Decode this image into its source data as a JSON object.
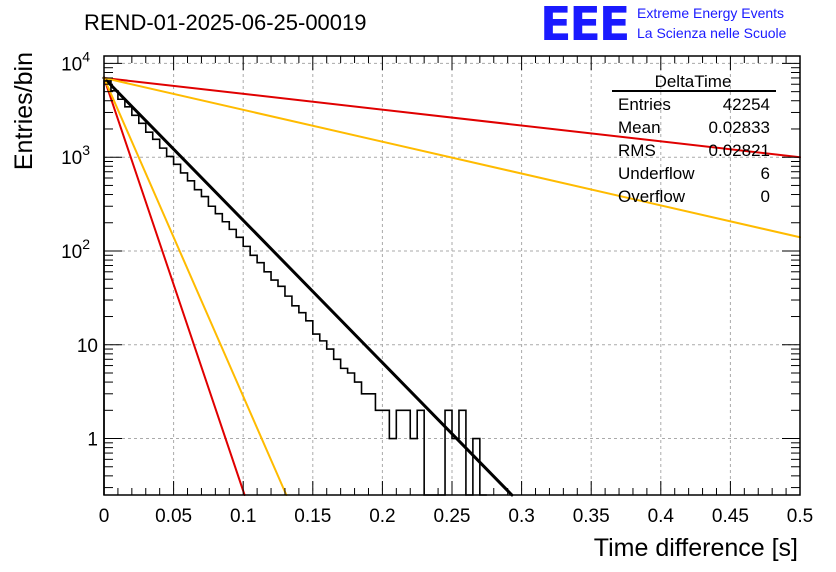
{
  "header": {
    "title": "REND-01-2025-06-25-00019",
    "logo_text": "EEE",
    "org_line1": "Extreme Energy Events",
    "org_line2": "La Scienza nelle Scuole"
  },
  "stats_box": {
    "title": "DeltaTime",
    "rows": [
      {
        "label": "Entries",
        "value": "42254"
      },
      {
        "label": "Mean",
        "value": "0.02833"
      },
      {
        "label": "RMS",
        "value": "0.02821"
      },
      {
        "label": "Underflow",
        "value": "6"
      },
      {
        "label": "Overflow",
        "value": "0"
      }
    ]
  },
  "colors": {
    "histogram": "#000000",
    "fit": "#000000",
    "red_curves": "#e00000",
    "orange_curves": "#ffbb00",
    "grid": "#aaaaaa",
    "logo": "#1a1aff"
  },
  "chart_data": {
    "type": "histogram",
    "title": "REND-01-2025-06-25-00019",
    "xlabel": "Time difference [s]",
    "ylabel": "Entries/bin",
    "xlim": [
      0,
      0.5
    ],
    "ylim": [
      0.25,
      12000
    ],
    "yscale": "log",
    "grid": true,
    "x_ticks": [
      "0",
      "0.05",
      "0.1",
      "0.15",
      "0.2",
      "0.25",
      "0.3",
      "0.35",
      "0.4",
      "0.45",
      "0.5"
    ],
    "y_ticks": [
      "1",
      "10",
      "10^2",
      "10^3",
      "10^4"
    ],
    "bin_width": 0.005,
    "histogram_bins": [
      {
        "x": 0.0,
        "y": 6500
      },
      {
        "x": 0.005,
        "y": 5100
      },
      {
        "x": 0.01,
        "y": 4150
      },
      {
        "x": 0.015,
        "y": 3450
      },
      {
        "x": 0.02,
        "y": 2800
      },
      {
        "x": 0.025,
        "y": 2300
      },
      {
        "x": 0.03,
        "y": 1850
      },
      {
        "x": 0.035,
        "y": 1550
      },
      {
        "x": 0.04,
        "y": 1250
      },
      {
        "x": 0.045,
        "y": 1020
      },
      {
        "x": 0.05,
        "y": 840
      },
      {
        "x": 0.055,
        "y": 680
      },
      {
        "x": 0.06,
        "y": 560
      },
      {
        "x": 0.065,
        "y": 450
      },
      {
        "x": 0.07,
        "y": 380
      },
      {
        "x": 0.075,
        "y": 300
      },
      {
        "x": 0.08,
        "y": 250
      },
      {
        "x": 0.085,
        "y": 205
      },
      {
        "x": 0.09,
        "y": 170
      },
      {
        "x": 0.095,
        "y": 140
      },
      {
        "x": 0.1,
        "y": 112
      },
      {
        "x": 0.105,
        "y": 90
      },
      {
        "x": 0.11,
        "y": 75
      },
      {
        "x": 0.115,
        "y": 60
      },
      {
        "x": 0.12,
        "y": 49
      },
      {
        "x": 0.125,
        "y": 42
      },
      {
        "x": 0.13,
        "y": 33
      },
      {
        "x": 0.135,
        "y": 26
      },
      {
        "x": 0.14,
        "y": 22
      },
      {
        "x": 0.145,
        "y": 18
      },
      {
        "x": 0.15,
        "y": 13
      },
      {
        "x": 0.155,
        "y": 11
      },
      {
        "x": 0.16,
        "y": 9
      },
      {
        "x": 0.165,
        "y": 7
      },
      {
        "x": 0.17,
        "y": 5.6
      },
      {
        "x": 0.175,
        "y": 5
      },
      {
        "x": 0.18,
        "y": 4
      },
      {
        "x": 0.185,
        "y": 3
      },
      {
        "x": 0.19,
        "y": 3
      },
      {
        "x": 0.195,
        "y": 2
      },
      {
        "x": 0.2,
        "y": 2
      },
      {
        "x": 0.205,
        "y": 1
      },
      {
        "x": 0.21,
        "y": 2
      },
      {
        "x": 0.215,
        "y": 2
      },
      {
        "x": 0.22,
        "y": 1
      },
      {
        "x": 0.225,
        "y": 2
      },
      {
        "x": 0.23,
        "y": 0
      },
      {
        "x": 0.235,
        "y": 0
      },
      {
        "x": 0.24,
        "y": 0
      },
      {
        "x": 0.245,
        "y": 2
      },
      {
        "x": 0.25,
        "y": 1
      },
      {
        "x": 0.255,
        "y": 2
      },
      {
        "x": 0.26,
        "y": 0
      },
      {
        "x": 0.265,
        "y": 1
      },
      {
        "x": 0.27,
        "y": 0
      }
    ],
    "series": [
      {
        "color": "#000000",
        "role": "fit",
        "start": {
          "x": 0,
          "y": 7000
        },
        "end": {
          "x": 0.293,
          "y": 0.25
        }
      },
      {
        "color": "#e00000",
        "role": "steep",
        "start": {
          "x": 0,
          "y": 7000
        },
        "end": {
          "x": 0.101,
          "y": 0.25
        }
      },
      {
        "color": "#ffbb00",
        "role": "steep",
        "start": {
          "x": 0,
          "y": 7000
        },
        "end": {
          "x": 0.131,
          "y": 0.25
        }
      },
      {
        "color": "#e00000",
        "role": "shallow",
        "start": {
          "x": 0,
          "y": 7000
        },
        "end": {
          "x": 0.5,
          "y": 1000
        }
      },
      {
        "color": "#ffbb00",
        "role": "shallow",
        "start": {
          "x": 0,
          "y": 7000
        },
        "end": {
          "x": 0.5,
          "y": 140
        }
      }
    ]
  }
}
